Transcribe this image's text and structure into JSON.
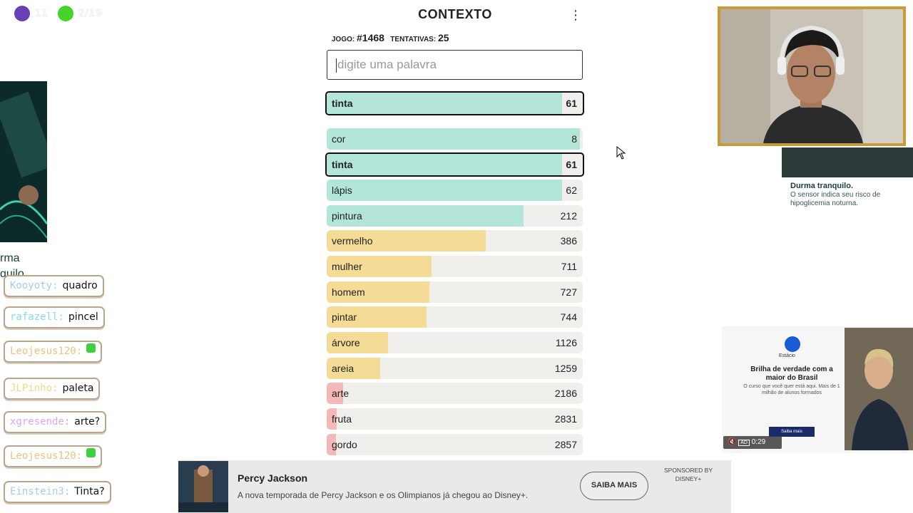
{
  "stream": {
    "stat1": {
      "color": "#6a3fb5",
      "value": "11"
    },
    "stat2": {
      "color": "#44d42a",
      "value": "2/19"
    }
  },
  "game": {
    "title": "CONTEXTO",
    "game_label": "JOGO:",
    "game_number": "#1468",
    "attempts_label": "TENTATIVAS:",
    "attempts": "25",
    "input_placeholder": "digite uma palavra",
    "last_guess": {
      "word": "tinta",
      "rank": 61,
      "fill": 0.92,
      "color": "#b3e6d8"
    },
    "guesses": [
      {
        "word": "cor",
        "rank": 8,
        "fill": 0.99,
        "color": "#b3e6d8",
        "highlight": false
      },
      {
        "word": "tinta",
        "rank": 61,
        "fill": 0.92,
        "color": "#b3e6d8",
        "highlight": true
      },
      {
        "word": "lápis",
        "rank": 62,
        "fill": 0.92,
        "color": "#b3e6d8",
        "highlight": false
      },
      {
        "word": "pintura",
        "rank": 212,
        "fill": 0.77,
        "color": "#b3e6d8",
        "highlight": false
      },
      {
        "word": "vermelho",
        "rank": 386,
        "fill": 0.62,
        "color": "#f5dc96",
        "highlight": false
      },
      {
        "word": "mulher",
        "rank": 711,
        "fill": 0.41,
        "color": "#f5dc96",
        "highlight": false
      },
      {
        "word": "homem",
        "rank": 727,
        "fill": 0.4,
        "color": "#f5dc96",
        "highlight": false
      },
      {
        "word": "pintar",
        "rank": 744,
        "fill": 0.39,
        "color": "#f5dc96",
        "highlight": false
      },
      {
        "word": "árvore",
        "rank": 1126,
        "fill": 0.24,
        "color": "#f5dc96",
        "highlight": false
      },
      {
        "word": "areia",
        "rank": 1259,
        "fill": 0.21,
        "color": "#f5dc96",
        "highlight": false
      },
      {
        "word": "arte",
        "rank": 2186,
        "fill": 0.065,
        "color": "#f4b8b8",
        "highlight": false
      },
      {
        "word": "fruta",
        "rank": 2831,
        "fill": 0.04,
        "color": "#f4b8b8",
        "highlight": false
      },
      {
        "word": "gordo",
        "rank": 2857,
        "fill": 0.035,
        "color": "#f4b8b8",
        "highlight": false
      }
    ]
  },
  "chat": [
    {
      "user": "Kooyoty:",
      "user_color": "#9fd0e8",
      "message": "quadro",
      "emote": false
    },
    {
      "user": "rafazell:",
      "user_color": "#7fe0e0",
      "message": "pincel",
      "emote": false
    },
    {
      "user": "Leojesus120:",
      "user_color": "#f2c27a",
      "message": "",
      "emote": true
    },
    {
      "user": "JLPinho:",
      "user_color": "#f2d98a",
      "message": "paleta",
      "emote": false
    },
    {
      "user": "xgresende:",
      "user_color": "#d9a8e8",
      "message": "arte?",
      "emote": false
    },
    {
      "user": "Leojesus120:",
      "user_color": "#f2c27a",
      "message": "",
      "emote": true
    },
    {
      "user": "Einstein3:",
      "user_color": "#a8c8f0",
      "message": "Tinta?",
      "emote": false
    }
  ],
  "ads": {
    "left_text": "rma\nquilo.",
    "right_heading": "Durma tranquilo.",
    "right_body": "O sensor indica seu risco de hipoglicemia noturna.",
    "video": {
      "brand": "Estácio",
      "headline": "Brilha de verdade com a maior do Brasil",
      "sub": "O curso que você quer está aqui. Mais de 1 milhão de alunos formados",
      "button": "Saiba mais",
      "time": "0:29"
    },
    "banner": {
      "title": "Percy Jackson",
      "description": "A nova temporada de Percy Jackson e os Olimpianos já chegou ao Disney+.",
      "cta": "SAIBA MAIS",
      "sponsored": "SPONSORED BY DISNEY+"
    }
  },
  "icons": {
    "menu": "more-vertical-icon",
    "cursor": "mouse-pointer-icon",
    "mute": "volume-mute-icon",
    "ad_badge": "ad-badge-icon"
  }
}
